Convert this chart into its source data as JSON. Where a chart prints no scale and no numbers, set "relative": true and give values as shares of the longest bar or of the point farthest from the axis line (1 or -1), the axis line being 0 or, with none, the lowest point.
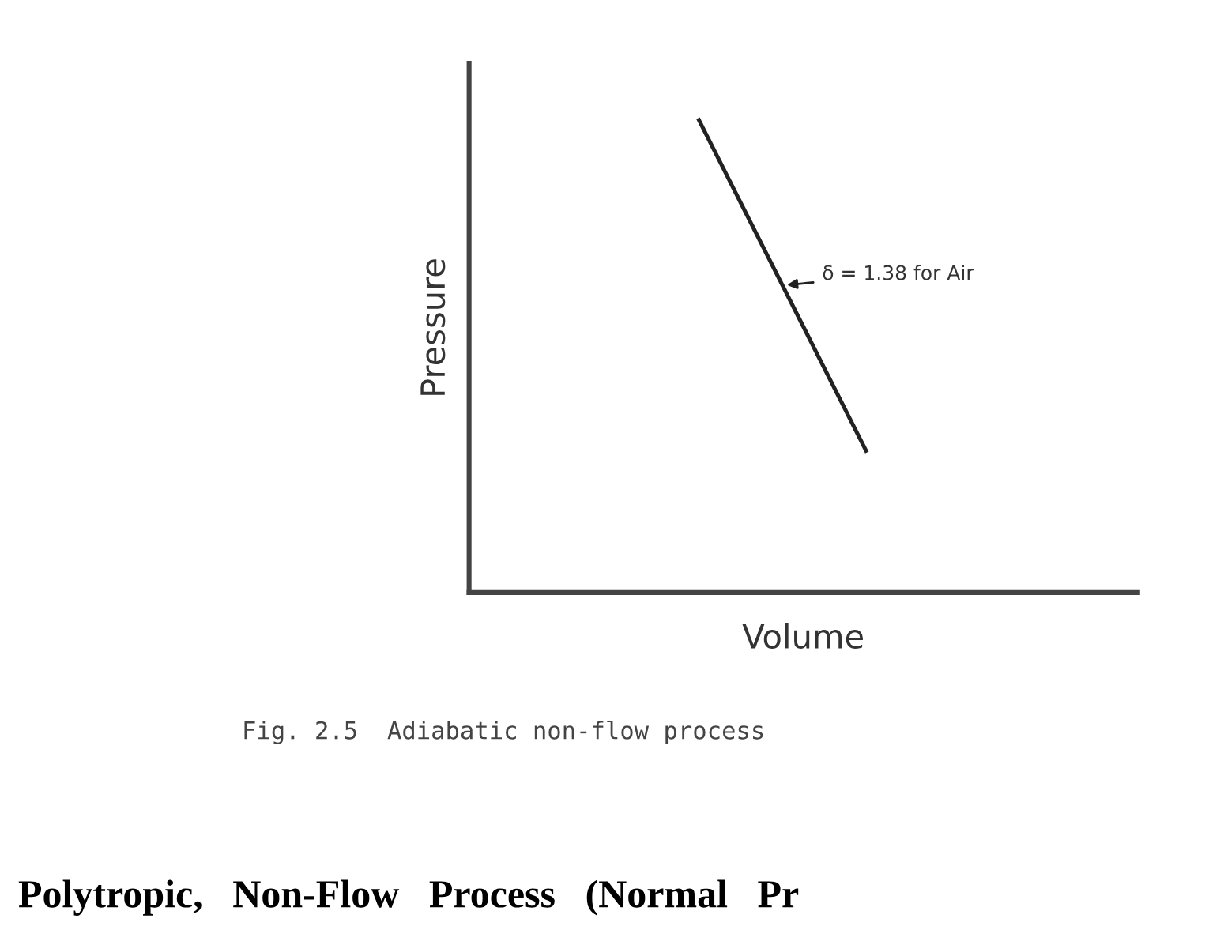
{
  "chart_data": {
    "type": "line",
    "relative": true,
    "xlabel": "Volume",
    "ylabel": "Pressure",
    "categories": [
      null,
      null,
      null,
      null,
      null,
      null,
      null,
      null,
      null,
      null,
      null,
      null,
      null,
      null,
      null,
      null
    ],
    "tick_labels": false,
    "marker": "none",
    "line_style": "solid",
    "series": [
      {
        "color": "#222222",
        "values": [
          null,
          null,
          null,
          null,
          null,
          1,
          0.825,
          0.65,
          0.475,
          0.3,
          null,
          null,
          null,
          null,
          null,
          null
        ]
      }
    ],
    "annotations": [
      "δ = 1.38 for Air",
      "Fig. 2.5  Adiabatic non-flow process",
      "Polytropic,   Non-Flow   Process   (Normal   Pr"
    ]
  }
}
